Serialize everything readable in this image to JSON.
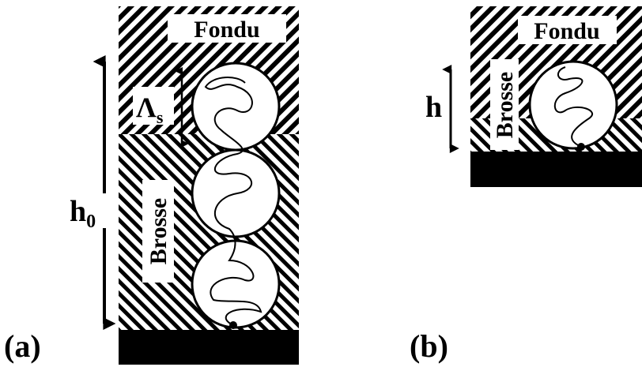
{
  "panel_a": {
    "label": "(a)",
    "melt": "Fondu",
    "brush": "Brosse",
    "lambda": {
      "symbol": "Λ",
      "subscript": "s"
    },
    "height": {
      "symbol": "h",
      "subscript": "0"
    }
  },
  "panel_b": {
    "label": "(b)",
    "melt": "Fondu",
    "brush": "Brosse",
    "height": "h"
  }
}
